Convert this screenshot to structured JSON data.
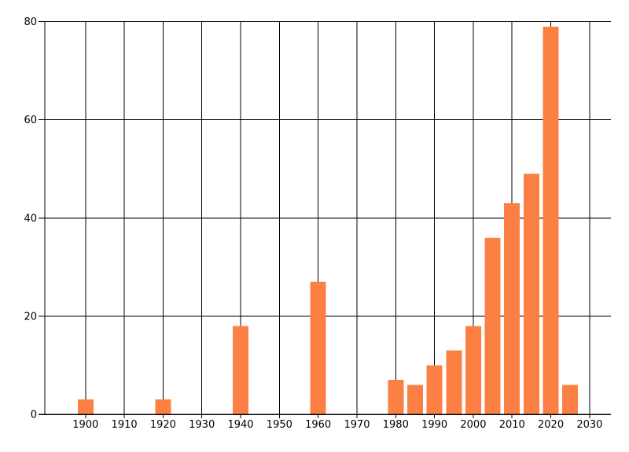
{
  "chart_data": {
    "type": "bar",
    "title": "",
    "xlabel": "",
    "ylabel": "",
    "x": [
      1900,
      1920,
      1940,
      1960,
      1980,
      1985,
      1990,
      1995,
      2000,
      2005,
      2010,
      2015,
      2020,
      2025
    ],
    "values": [
      3,
      3,
      18,
      27,
      7,
      6,
      10,
      13,
      18,
      36,
      43,
      49,
      79,
      6
    ],
    "x_ticks": [
      1900,
      1910,
      1920,
      1930,
      1940,
      1950,
      1960,
      1970,
      1980,
      1990,
      2000,
      2010,
      2020,
      2030
    ],
    "y_ticks": [
      0,
      20,
      40,
      60,
      80
    ],
    "xlim": [
      1889.5,
      2035.5
    ],
    "ylim": [
      0,
      80
    ],
    "grid": true,
    "legend": false,
    "colors": {
      "bar": "#fc8044",
      "grid": "#000000",
      "axis": "#000000",
      "text": "#000000",
      "background": "#ffffff"
    }
  }
}
